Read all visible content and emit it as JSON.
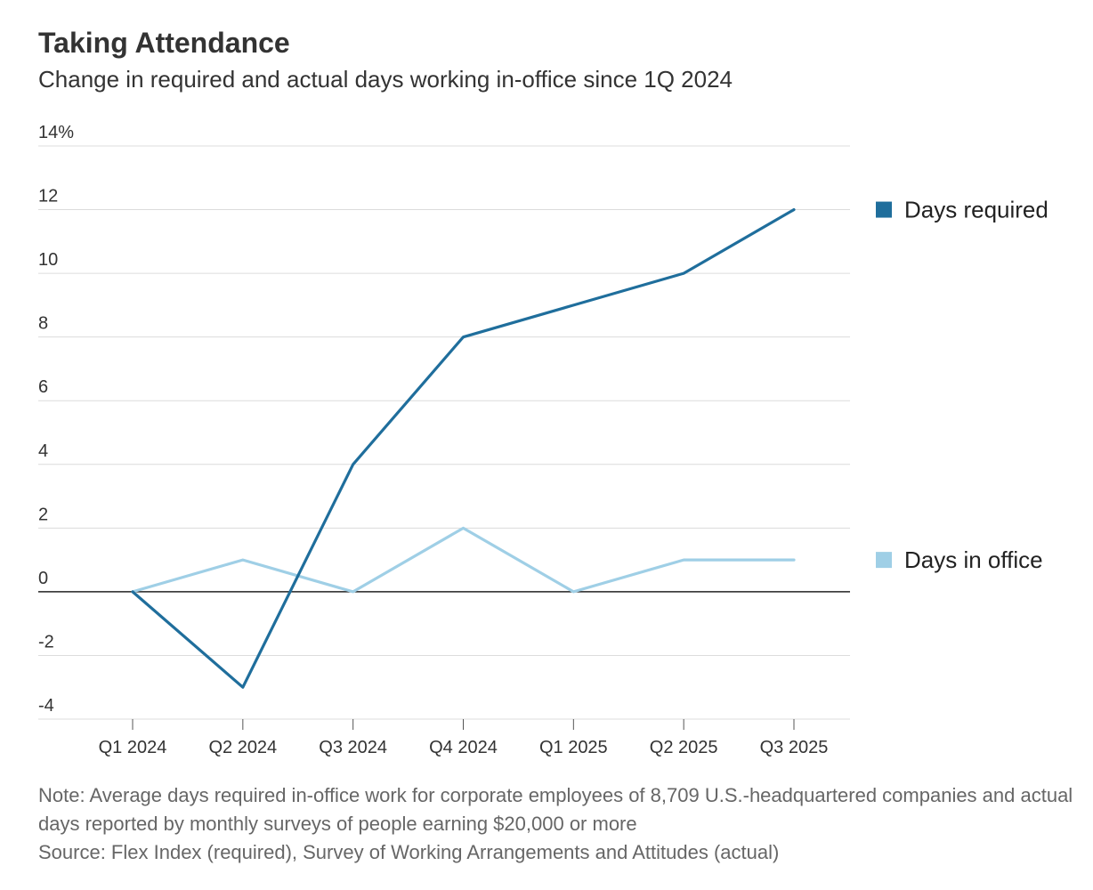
{
  "header": {
    "title": "Taking Attendance",
    "subtitle": "Change in required and actual days working in-office since 1Q 2024"
  },
  "chart_data": {
    "type": "line",
    "categories": [
      "Q1 2024",
      "Q2 2024",
      "Q3 2024",
      "Q4 2024",
      "Q1 2025",
      "Q2 2025",
      "Q3 2025"
    ],
    "series": [
      {
        "name": "Days required",
        "values": [
          0,
          -3,
          4,
          8,
          9,
          10,
          12
        ],
        "color": "#1f6e9c"
      },
      {
        "name": "Days in office",
        "values": [
          0,
          1,
          0,
          2,
          0,
          1,
          1
        ],
        "color": "#9fcfe6"
      }
    ],
    "ylim": [
      -4,
      14
    ],
    "yticks": [
      -4,
      -2,
      0,
      2,
      4,
      6,
      8,
      10,
      12,
      14
    ],
    "ytick_labels": [
      "-4",
      "-2",
      "0",
      "2",
      "4",
      "6",
      "8",
      "10",
      "12",
      "14%"
    ],
    "xlabel": "",
    "ylabel": "",
    "legend_position": "right"
  },
  "footer": {
    "note": "Note: Average days required in-office work for corporate employees of 8,709 U.S.-headquartered companies and actual days reported by monthly surveys of people earning $20,000 or more",
    "source": "Source: Flex Index (required), Survey of Working Arrangements and Attitudes (actual)"
  }
}
